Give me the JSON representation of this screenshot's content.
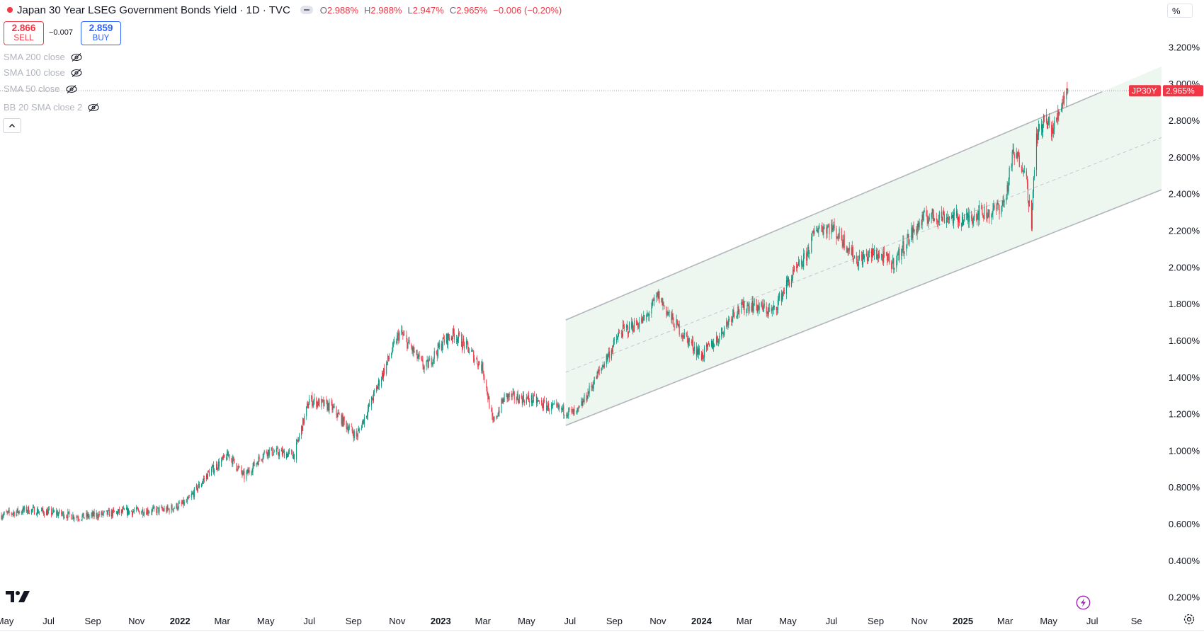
{
  "header": {
    "title": "Japan 30 Year LSEG Government Bonds Yield · 1D · TVC",
    "open_label": "O",
    "open": "2.988%",
    "high_label": "H",
    "high": "2.988%",
    "low_label": "L",
    "low": "2.947%",
    "close_label": "C",
    "close": "2.965%",
    "change": "−0.006 (−0.20%)"
  },
  "trade": {
    "sell_price": "2.866",
    "sell_label": "SELL",
    "spread": "−0.007",
    "buy_price": "2.859",
    "buy_label": "BUY"
  },
  "indicators": [
    "SMA 200 close",
    "SMA 100 close",
    "SMA 50 close",
    "BB 20 SMA close 2"
  ],
  "scale_mode": "%",
  "price_tag": {
    "symbol": "JP30Y",
    "price": "2.965%"
  },
  "icons": [
    "eye-hidden-icon",
    "chevron-up-icon",
    "tradingview-logo-icon",
    "lightning-icon",
    "gear-icon"
  ],
  "colors": {
    "up": "#089981",
    "down": "#f23645",
    "channel": "#b2b5be",
    "channel_fill": "#eef7ef",
    "axis_text": "#131722",
    "tag": "#f23645"
  },
  "chart_data": {
    "type": "candlestick",
    "title": "Japan 30 Year LSEG Government Bonds Yield",
    "interval": "1D",
    "y_unit": "%",
    "ylim": [
      0.11,
      3.46
    ],
    "xlim": [
      "2021-04-24",
      "2025-10-06"
    ],
    "y_ticks": [
      "3.200%",
      "3.000%",
      "2.800%",
      "2.600%",
      "2.400%",
      "2.200%",
      "2.000%",
      "1.800%",
      "1.600%",
      "1.400%",
      "1.200%",
      "1.000%",
      "0.800%",
      "0.600%",
      "0.400%",
      "0.200%"
    ],
    "x_ticks": [
      {
        "date": "2021-05-01",
        "label": "May",
        "bold": false
      },
      {
        "date": "2021-07-01",
        "label": "Jul",
        "bold": false
      },
      {
        "date": "2021-09-01",
        "label": "Sep",
        "bold": false
      },
      {
        "date": "2021-11-01",
        "label": "Nov",
        "bold": false
      },
      {
        "date": "2022-01-01",
        "label": "2022",
        "bold": true
      },
      {
        "date": "2022-03-01",
        "label": "Mar",
        "bold": false
      },
      {
        "date": "2022-05-01",
        "label": "May",
        "bold": false
      },
      {
        "date": "2022-07-01",
        "label": "Jul",
        "bold": false
      },
      {
        "date": "2022-09-01",
        "label": "Sep",
        "bold": false
      },
      {
        "date": "2022-11-01",
        "label": "Nov",
        "bold": false
      },
      {
        "date": "2023-01-01",
        "label": "2023",
        "bold": true
      },
      {
        "date": "2023-03-01",
        "label": "Mar",
        "bold": false
      },
      {
        "date": "2023-05-01",
        "label": "May",
        "bold": false
      },
      {
        "date": "2023-07-01",
        "label": "Jul",
        "bold": false
      },
      {
        "date": "2023-09-01",
        "label": "Sep",
        "bold": false
      },
      {
        "date": "2023-11-01",
        "label": "Nov",
        "bold": false
      },
      {
        "date": "2024-01-01",
        "label": "2024",
        "bold": true
      },
      {
        "date": "2024-03-01",
        "label": "Mar",
        "bold": false
      },
      {
        "date": "2024-05-01",
        "label": "May",
        "bold": false
      },
      {
        "date": "2024-07-01",
        "label": "Jul",
        "bold": false
      },
      {
        "date": "2024-09-01",
        "label": "Sep",
        "bold": false
      },
      {
        "date": "2024-11-01",
        "label": "Nov",
        "bold": false
      },
      {
        "date": "2025-01-01",
        "label": "2025",
        "bold": true
      },
      {
        "date": "2025-03-01",
        "label": "Mar",
        "bold": false
      },
      {
        "date": "2025-05-01",
        "label": "May",
        "bold": false
      },
      {
        "date": "2025-07-01",
        "label": "Jul",
        "bold": false
      },
      {
        "date": "2025-09-01",
        "label": "Se",
        "bold": false
      }
    ],
    "price_path": [
      [
        "2021-04-24",
        0.65
      ],
      [
        "2021-06-01",
        0.68
      ],
      [
        "2021-07-15",
        0.66
      ],
      [
        "2021-08-15",
        0.64
      ],
      [
        "2021-10-15",
        0.67
      ],
      [
        "2021-12-15",
        0.68
      ],
      [
        "2022-01-10",
        0.72
      ],
      [
        "2022-02-10",
        0.88
      ],
      [
        "2022-03-10",
        0.98
      ],
      [
        "2022-04-01",
        0.86
      ],
      [
        "2022-05-01",
        1.0
      ],
      [
        "2022-06-10",
        0.98
      ],
      [
        "2022-07-01",
        1.28
      ],
      [
        "2022-08-01",
        1.24
      ],
      [
        "2022-08-20",
        1.15
      ],
      [
        "2022-09-05",
        1.08
      ],
      [
        "2022-10-01",
        1.32
      ],
      [
        "2022-10-25",
        1.55
      ],
      [
        "2022-11-05",
        1.65
      ],
      [
        "2022-12-10",
        1.45
      ],
      [
        "2023-01-05",
        1.6
      ],
      [
        "2023-01-20",
        1.64
      ],
      [
        "2023-02-10",
        1.55
      ],
      [
        "2023-03-01",
        1.45
      ],
      [
        "2023-03-15",
        1.15
      ],
      [
        "2023-04-01",
        1.3
      ],
      [
        "2023-05-10",
        1.28
      ],
      [
        "2023-06-01",
        1.24
      ],
      [
        "2023-06-25",
        1.22
      ],
      [
        "2023-07-10",
        1.2
      ],
      [
        "2023-08-01",
        1.36
      ],
      [
        "2023-08-20",
        1.5
      ],
      [
        "2023-09-10",
        1.65
      ],
      [
        "2023-10-15",
        1.72
      ],
      [
        "2023-11-01",
        1.85
      ],
      [
        "2023-11-20",
        1.72
      ],
      [
        "2023-12-10",
        1.62
      ],
      [
        "2024-01-01",
        1.52
      ],
      [
        "2024-01-25",
        1.62
      ],
      [
        "2024-02-15",
        1.76
      ],
      [
        "2024-03-10",
        1.8
      ],
      [
        "2024-04-10",
        1.76
      ],
      [
        "2024-05-01",
        1.92
      ],
      [
        "2024-05-25",
        2.05
      ],
      [
        "2024-06-10",
        2.22
      ],
      [
        "2024-07-01",
        2.22
      ],
      [
        "2024-07-20",
        2.14
      ],
      [
        "2024-08-05",
        2.04
      ],
      [
        "2024-09-01",
        2.08
      ],
      [
        "2024-09-25",
        2.02
      ],
      [
        "2024-10-20",
        2.18
      ],
      [
        "2024-11-10",
        2.28
      ],
      [
        "2024-12-10",
        2.28
      ],
      [
        "2025-01-05",
        2.26
      ],
      [
        "2025-01-20",
        2.3
      ],
      [
        "2025-02-10",
        2.3
      ],
      [
        "2025-03-01",
        2.36
      ],
      [
        "2025-03-12",
        2.62
      ],
      [
        "2025-03-28",
        2.56
      ],
      [
        "2025-04-07",
        2.25
      ],
      [
        "2025-04-14",
        2.72
      ],
      [
        "2025-04-25",
        2.8
      ],
      [
        "2025-05-08",
        2.75
      ],
      [
        "2025-05-20",
        2.92
      ],
      [
        "2025-05-28",
        2.965
      ]
    ],
    "last_close": 2.965,
    "channel": {
      "upper": [
        [
          "2023-06-25",
          1.715
        ],
        [
          "2025-07-15",
          2.96
        ]
      ],
      "mid": [
        [
          "2023-06-25",
          1.43
        ],
        [
          "2025-10-06",
          2.71
        ]
      ],
      "lower": [
        [
          "2023-06-25",
          1.14
        ],
        [
          "2025-10-06",
          2.425
        ]
      ]
    }
  }
}
